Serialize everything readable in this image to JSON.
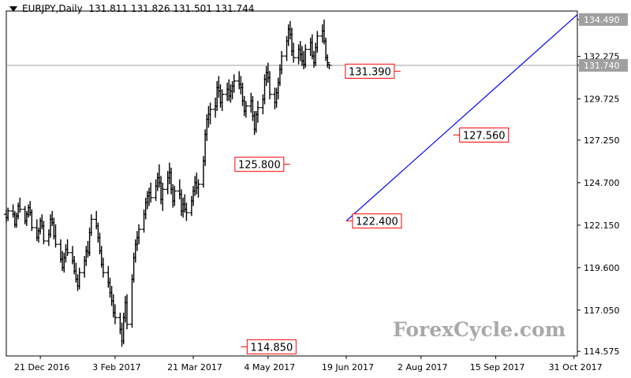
{
  "header": {
    "symbol": "EURJPY,Daily",
    "open": "131.811",
    "high": "131.826",
    "low": "131.501",
    "close": "131.744"
  },
  "watermark": "ForexCycle.com",
  "colors": {
    "candles": "#000000",
    "trendline": "#0000ff",
    "annotation_border": "#ff0000",
    "price_tag_bg": "#a0a0a0",
    "current_line": "#a0a0a0"
  },
  "chart_data": {
    "type": "ohlc",
    "x_axis_type": "date",
    "y_range": [
      114.3,
      135.0
    ],
    "y_ticks": [
      "134.490",
      "132.275",
      "131.740",
      "129.725",
      "127.250",
      "124.700",
      "122.150",
      "119.600",
      "117.050",
      "114.575"
    ],
    "x_ticks": [
      "21 Dec 2016",
      "3 Feb 2017",
      "21 Mar 2017",
      "4 May 2017",
      "19 Jun 2017",
      "2 Aug 2017",
      "15 Sep 2017",
      "31 Oct 2017"
    ],
    "price_tags": {
      "high": "134.490",
      "current": "131.740"
    },
    "annotations": [
      {
        "label": "114.850",
        "date": "2017-04-18",
        "value": 114.85
      },
      {
        "label": "125.800",
        "date": "2017-05-17",
        "value": 125.8
      },
      {
        "label": "122.400",
        "date": "2017-06-19",
        "value": 122.4
      },
      {
        "label": "131.390",
        "date": "2017-07-21",
        "value": 131.39
      },
      {
        "label": "127.560",
        "date": "2017-08-21",
        "value": 127.56
      }
    ],
    "trendline": {
      "from": {
        "date": "2017-06-19",
        "value": 122.4
      },
      "to": {
        "date": "2017-10-20",
        "value": 133.6
      }
    },
    "series": [
      {
        "values": [
          [
            122.8,
            123.1,
            122.3,
            122.6
          ],
          [
            122.6,
            123.2,
            122.4,
            123.0
          ],
          [
            123.0,
            123.4,
            122.6,
            122.8
          ],
          [
            122.8,
            123.0,
            122.0,
            122.2
          ],
          [
            122.2,
            122.9,
            122.0,
            122.7
          ],
          [
            122.7,
            123.5,
            122.5,
            123.3
          ],
          [
            123.3,
            123.8,
            122.9,
            123.1
          ],
          [
            123.1,
            123.3,
            122.2,
            122.4
          ],
          [
            122.4,
            123.0,
            122.1,
            122.8
          ],
          [
            122.8,
            123.4,
            122.6,
            123.2
          ],
          [
            123.2,
            123.6,
            122.7,
            122.9
          ],
          [
            122.9,
            123.1,
            121.8,
            122.0
          ],
          [
            122.0,
            122.5,
            121.2,
            121.4
          ],
          [
            121.4,
            122.0,
            121.1,
            121.8
          ],
          [
            121.8,
            122.6,
            121.6,
            122.4
          ],
          [
            122.4,
            122.8,
            121.9,
            122.1
          ],
          [
            122.1,
            122.4,
            121.0,
            121.2
          ],
          [
            121.2,
            121.9,
            120.9,
            121.6
          ],
          [
            121.6,
            122.8,
            121.4,
            122.5
          ],
          [
            122.5,
            123.0,
            122.1,
            122.3
          ],
          [
            122.3,
            122.6,
            121.3,
            121.5
          ],
          [
            121.5,
            122.2,
            120.8,
            121.0
          ],
          [
            121.0,
            121.3,
            119.9,
            120.1
          ],
          [
            120.1,
            120.6,
            119.4,
            119.6
          ],
          [
            119.6,
            120.5,
            119.3,
            120.2
          ],
          [
            120.2,
            121.0,
            119.9,
            120.7
          ],
          [
            120.7,
            121.3,
            120.3,
            120.5
          ],
          [
            120.5,
            120.9,
            119.8,
            120.0
          ],
          [
            120.0,
            120.3,
            119.2,
            119.4
          ],
          [
            119.4,
            119.9,
            118.7,
            118.9
          ],
          [
            118.9,
            119.2,
            118.2,
            118.5
          ],
          [
            118.5,
            119.6,
            118.3,
            119.3
          ],
          [
            119.3,
            120.3,
            119.0,
            120.0
          ],
          [
            120.0,
            120.9,
            119.7,
            120.6
          ],
          [
            120.6,
            121.2,
            120.2,
            120.5
          ],
          [
            120.5,
            122.0,
            120.3,
            121.7
          ],
          [
            121.7,
            122.8,
            121.5,
            122.5
          ],
          [
            122.5,
            123.0,
            121.9,
            122.1
          ],
          [
            122.1,
            122.3,
            121.1,
            121.4
          ],
          [
            121.4,
            121.7,
            120.4,
            120.6
          ],
          [
            120.6,
            120.9,
            119.6,
            119.8
          ],
          [
            119.8,
            120.2,
            119.0,
            119.3
          ],
          [
            119.3,
            119.7,
            118.4,
            118.7
          ],
          [
            118.7,
            119.0,
            117.8,
            118.1
          ],
          [
            118.1,
            118.5,
            117.3,
            117.6
          ],
          [
            117.6,
            118.0,
            116.6,
            116.9
          ],
          [
            116.9,
            117.4,
            116.2,
            116.6
          ],
          [
            116.6,
            116.9,
            115.6,
            115.9
          ],
          [
            115.9,
            116.3,
            114.85,
            115.2
          ],
          [
            115.2,
            116.9,
            115.0,
            116.6
          ],
          [
            116.6,
            117.9,
            116.3,
            117.5
          ],
          [
            117.5,
            118.0,
            115.9,
            116.2
          ],
          [
            116.2,
            119.2,
            116.0,
            118.9
          ],
          [
            118.9,
            120.5,
            118.7,
            120.2
          ],
          [
            120.2,
            121.3,
            119.9,
            121.0
          ],
          [
            121.0,
            121.8,
            120.6,
            121.4
          ],
          [
            121.4,
            122.2,
            121.0,
            121.9
          ],
          [
            121.9,
            123.1,
            121.7,
            122.8
          ],
          [
            122.8,
            123.8,
            122.5,
            123.5
          ],
          [
            123.5,
            124.2,
            123.1,
            123.9
          ],
          [
            123.9,
            124.4,
            123.3,
            124.1
          ],
          [
            124.1,
            124.7,
            123.5,
            123.8
          ],
          [
            123.8,
            124.9,
            123.6,
            124.5
          ],
          [
            124.5,
            125.3,
            124.2,
            125.0
          ],
          [
            125.0,
            125.8,
            124.4,
            124.7
          ],
          [
            124.7,
            125.1,
            123.4,
            123.7
          ],
          [
            123.7,
            124.7,
            123.0,
            124.3
          ],
          [
            124.3,
            125.4,
            124.0,
            125.0
          ],
          [
            125.0,
            125.9,
            124.6,
            125.3
          ],
          [
            125.3,
            125.6,
            124.0,
            124.3
          ],
          [
            124.3,
            124.6,
            123.2,
            123.6
          ],
          [
            123.6,
            124.5,
            123.3,
            124.2
          ],
          [
            124.2,
            124.9,
            123.7,
            124.0
          ],
          [
            124.0,
            124.3,
            122.7,
            123.0
          ],
          [
            123.0,
            123.8,
            122.6,
            123.4
          ],
          [
            123.4,
            124.0,
            122.9,
            123.1
          ],
          [
            123.1,
            123.5,
            122.4,
            122.9
          ],
          [
            122.9,
            123.9,
            122.7,
            123.6
          ],
          [
            123.6,
            124.5,
            123.3,
            124.2
          ],
          [
            124.2,
            125.1,
            123.9,
            124.7
          ],
          [
            124.7,
            125.3,
            124.0,
            124.4
          ],
          [
            124.4,
            124.9,
            123.8,
            124.6
          ],
          [
            124.6,
            126.3,
            124.4,
            126.0
          ],
          [
            126.0,
            127.9,
            125.7,
            127.6
          ],
          [
            127.6,
            128.8,
            127.2,
            128.5
          ],
          [
            128.5,
            129.3,
            128.0,
            128.8
          ],
          [
            128.8,
            129.5,
            128.2,
            129.1
          ],
          [
            129.1,
            129.8,
            128.6,
            129.3
          ],
          [
            129.3,
            130.8,
            129.0,
            130.4
          ],
          [
            130.4,
            131.1,
            129.8,
            130.2
          ],
          [
            130.2,
            130.6,
            129.2,
            129.5
          ],
          [
            129.5,
            130.3,
            129.0,
            130.0
          ],
          [
            130.0,
            130.7,
            129.6,
            130.3
          ],
          [
            130.3,
            130.9,
            129.6,
            129.9
          ],
          [
            129.9,
            130.6,
            129.5,
            130.2
          ],
          [
            130.2,
            130.8,
            129.7,
            130.5
          ],
          [
            130.5,
            131.2,
            130.1,
            130.8
          ],
          [
            130.8,
            131.39,
            130.3,
            130.6
          ],
          [
            130.6,
            131.1,
            130.0,
            130.4
          ],
          [
            130.4,
            130.7,
            129.3,
            129.6
          ],
          [
            129.6,
            129.9,
            128.7,
            129.0
          ],
          [
            129.0,
            129.6,
            128.6,
            129.3
          ],
          [
            129.3,
            130.1,
            128.9,
            129.6
          ],
          [
            129.6,
            129.9,
            128.4,
            128.7
          ],
          [
            128.7,
            129.0,
            127.56,
            127.9
          ],
          [
            127.9,
            129.0,
            127.7,
            128.8
          ],
          [
            128.8,
            129.6,
            128.3,
            129.2
          ],
          [
            129.2,
            130.0,
            128.8,
            129.7
          ],
          [
            129.7,
            131.2,
            129.4,
            130.9
          ],
          [
            130.9,
            131.7,
            130.5,
            131.3
          ],
          [
            131.3,
            131.9,
            130.7,
            131.0
          ],
          [
            131.0,
            131.4,
            129.7,
            130.0
          ],
          [
            130.0,
            130.4,
            129.1,
            129.5
          ],
          [
            129.5,
            130.4,
            129.2,
            130.1
          ],
          [
            130.1,
            131.0,
            129.7,
            130.7
          ],
          [
            130.7,
            131.8,
            130.5,
            131.5
          ],
          [
            131.5,
            132.6,
            131.2,
            132.3
          ],
          [
            132.3,
            133.5,
            132.0,
            133.2
          ],
          [
            133.2,
            134.2,
            132.9,
            133.9
          ],
          [
            133.9,
            134.4,
            133.3,
            133.6
          ],
          [
            133.6,
            134.0,
            132.3,
            132.6
          ],
          [
            132.6,
            133.1,
            131.9,
            132.2
          ],
          [
            132.2,
            133.0,
            131.8,
            132.7
          ],
          [
            132.7,
            133.2,
            132.0,
            132.4
          ],
          [
            132.4,
            132.9,
            131.7,
            132.0
          ],
          [
            132.0,
            132.6,
            131.5,
            131.8
          ],
          [
            131.8,
            133.0,
            131.6,
            132.7
          ],
          [
            132.7,
            133.4,
            132.3,
            133.1
          ],
          [
            133.1,
            133.6,
            132.1,
            132.3
          ],
          [
            132.3,
            132.6,
            131.6,
            131.9
          ],
          [
            131.9,
            133.1,
            131.7,
            132.8
          ],
          [
            132.8,
            133.8,
            132.5,
            133.5
          ],
          [
            133.5,
            134.2,
            133.1,
            133.8
          ],
          [
            133.8,
            134.49,
            133.0,
            133.2
          ],
          [
            133.2,
            133.4,
            132.0,
            132.2
          ],
          [
            132.2,
            132.4,
            131.6,
            131.9
          ],
          [
            131.811,
            131.826,
            131.501,
            131.744
          ]
        ]
      }
    ]
  }
}
